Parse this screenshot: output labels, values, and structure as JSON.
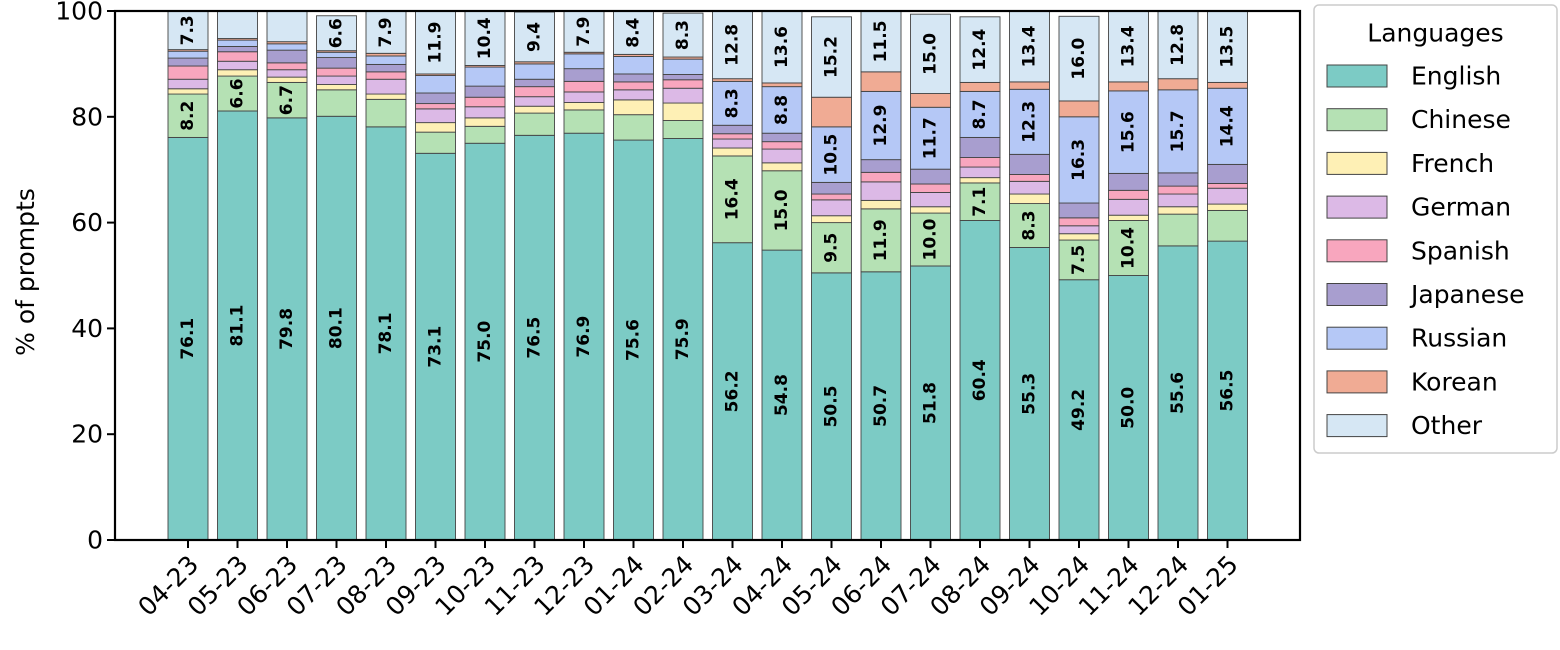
{
  "chart_data": {
    "type": "bar",
    "stacked": true,
    "ylabel": "% of prompts",
    "xlabel": "",
    "ylim": [
      0,
      100
    ],
    "yticks": [
      0,
      20,
      40,
      60,
      80,
      100
    ],
    "grid": false,
    "legend": {
      "title": "Languages",
      "placement": "right"
    },
    "categories": [
      "04-23",
      "05-23",
      "06-23",
      "07-23",
      "08-23",
      "09-23",
      "10-23",
      "11-23",
      "12-23",
      "01-24",
      "02-24",
      "03-24",
      "04-24",
      "05-24",
      "06-24",
      "07-24",
      "08-24",
      "09-24",
      "10-24",
      "11-24",
      "12-24",
      "01-25"
    ],
    "series": [
      {
        "name": "English",
        "color": "#7ccbc5",
        "values": [
          76.1,
          81.1,
          79.8,
          80.1,
          78.1,
          73.1,
          75.0,
          76.5,
          76.9,
          75.6,
          75.9,
          56.2,
          54.8,
          50.5,
          50.7,
          51.8,
          60.4,
          55.3,
          49.2,
          50.0,
          55.6,
          56.5
        ],
        "labels": [
          "76.1",
          "81.1",
          "79.8",
          "80.1",
          "78.1",
          "73.1",
          "75.0",
          "76.5",
          "76.9",
          "75.6",
          "75.9",
          "56.2",
          "54.8",
          "50.5",
          "50.7",
          "51.8",
          "60.4",
          "55.3",
          "49.2",
          "50.0",
          "55.6",
          "56.5"
        ]
      },
      {
        "name": "Chinese",
        "color": "#b5e1b4",
        "values": [
          8.2,
          6.6,
          6.7,
          5.0,
          5.2,
          4.0,
          3.2,
          4.2,
          4.4,
          4.8,
          3.4,
          16.4,
          15.0,
          9.5,
          11.9,
          10.0,
          7.1,
          8.3,
          7.5,
          10.4,
          6.0,
          5.8
        ],
        "labels": [
          "8.2",
          "6.6",
          "6.7",
          "",
          "",
          "",
          "",
          "",
          "",
          "",
          "",
          "16.4",
          "15.0",
          "9.5",
          "11.9",
          "10.0",
          "7.1",
          "8.3",
          "7.5",
          "10.4",
          "",
          ""
        ]
      },
      {
        "name": "French",
        "color": "#fef0b5",
        "values": [
          1.0,
          1.2,
          1.0,
          1.0,
          1.0,
          1.8,
          1.6,
          1.3,
          1.4,
          2.8,
          3.3,
          1.5,
          1.5,
          1.3,
          1.6,
          1.2,
          1.0,
          1.8,
          1.2,
          1.0,
          1.4,
          1.2
        ],
        "labels": [
          "",
          "",
          "",
          "",
          "",
          "",
          "",
          "",
          "",
          "",
          "",
          "",
          "",
          "",
          "",
          "",
          "",
          "",
          "",
          "",
          "",
          ""
        ]
      },
      {
        "name": "German",
        "color": "#dcb9e6",
        "values": [
          1.8,
          1.6,
          1.4,
          1.6,
          2.8,
          2.6,
          2.1,
          1.8,
          2.0,
          1.9,
          2.8,
          1.7,
          2.6,
          3.0,
          3.5,
          2.7,
          2.0,
          2.4,
          1.5,
          3.0,
          2.4,
          3.0
        ],
        "labels": [
          "",
          "",
          "",
          "",
          "",
          "",
          "",
          "",
          "",
          "",
          "",
          "",
          "",
          "",
          "",
          "",
          "",
          "",
          "",
          "",
          "",
          ""
        ]
      },
      {
        "name": "Spanish",
        "color": "#f8a6be",
        "values": [
          2.5,
          1.8,
          1.3,
          1.5,
          1.4,
          1.0,
          1.8,
          1.9,
          2.0,
          1.5,
          1.6,
          1.0,
          1.4,
          1.1,
          1.8,
          1.6,
          1.8,
          1.3,
          1.5,
          1.7,
          1.5,
          0.9
        ],
        "labels": [
          "",
          "",
          "",
          "",
          "",
          "",
          "",
          "",
          "",
          "",
          "",
          "",
          "",
          "",
          "",
          "",
          "",
          "",
          "",
          "",
          "",
          ""
        ]
      },
      {
        "name": "Japanese",
        "color": "#a89ecf",
        "values": [
          1.5,
          1.0,
          2.4,
          2.0,
          1.4,
          2.0,
          2.1,
          1.4,
          2.4,
          1.5,
          1.0,
          1.6,
          1.6,
          2.2,
          2.4,
          2.8,
          3.8,
          3.8,
          2.8,
          3.2,
          2.5,
          3.6
        ],
        "labels": [
          "",
          "",
          "",
          "",
          "",
          "",
          "",
          "",
          "",
          "",
          "",
          "",
          "",
          "",
          "",
          "",
          "",
          "",
          "",
          "",
          "",
          ""
        ]
      },
      {
        "name": "Russian",
        "color": "#b5c8f6",
        "values": [
          1.3,
          1.2,
          1.2,
          1.0,
          1.6,
          3.3,
          3.6,
          2.9,
          2.8,
          3.3,
          2.9,
          8.3,
          8.8,
          10.5,
          12.9,
          11.7,
          8.7,
          12.3,
          16.3,
          15.6,
          15.7,
          14.4
        ],
        "labels": [
          "",
          "",
          "",
          "",
          "",
          "",
          "",
          "",
          "",
          "",
          "",
          "8.3",
          "8.8",
          "10.5",
          "12.9",
          "11.7",
          "8.7",
          "12.3",
          "16.3",
          "15.6",
          "15.7",
          "14.4"
        ]
      },
      {
        "name": "Korean",
        "color": "#f0ab94",
        "values": [
          0.3,
          0.3,
          0.4,
          0.3,
          0.5,
          0.3,
          0.3,
          0.4,
          0.3,
          0.4,
          0.4,
          0.5,
          0.7,
          5.6,
          3.7,
          2.6,
          1.7,
          1.4,
          3.0,
          1.7,
          2.1,
          1.1
        ],
        "labels": [
          "",
          "",
          "",
          "",
          "",
          "",
          "",
          "",
          "",
          "",
          "",
          "",
          "",
          "",
          "",
          "",
          "",
          "",
          "",
          "",
          "",
          ""
        ]
      },
      {
        "name": "Other",
        "color": "#d6e7f4",
        "values": [
          7.3,
          5.2,
          5.8,
          6.6,
          7.9,
          11.9,
          10.4,
          9.4,
          7.9,
          8.4,
          8.3,
          12.8,
          13.6,
          15.2,
          11.5,
          15.0,
          12.4,
          13.4,
          16.0,
          13.4,
          12.8,
          13.5
        ],
        "labels": [
          "7.3",
          "",
          "",
          "6.6",
          "7.9",
          "11.9",
          "10.4",
          "9.4",
          "7.9",
          "8.4",
          "8.3",
          "12.8",
          "13.6",
          "15.2",
          "11.5",
          "15.0",
          "12.4",
          "13.4",
          "16.0",
          "13.4",
          "12.8",
          "13.5"
        ]
      }
    ]
  }
}
